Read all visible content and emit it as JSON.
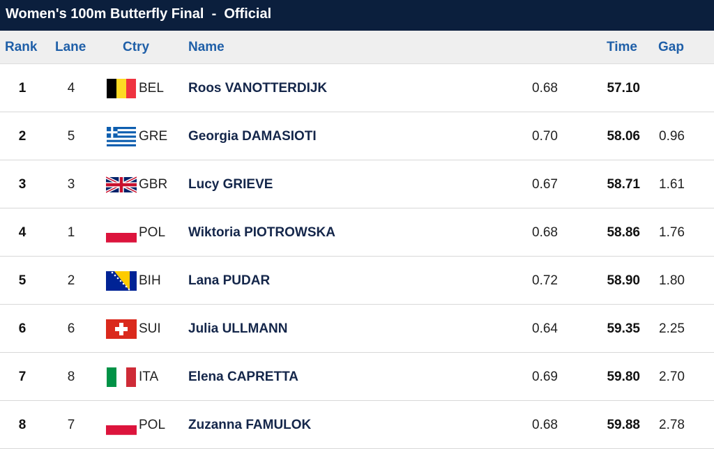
{
  "title": "Women's 100m Butterfly Final  -  Official",
  "columns": {
    "rank": "Rank",
    "lane": "Lane",
    "ctry": "Ctry",
    "name": "Name",
    "time": "Time",
    "gap": "Gap"
  },
  "rows": [
    {
      "rank": "1",
      "lane": "4",
      "flag": "bel-flag-icon",
      "ctry": "BEL",
      "name": "Roos VANOTTERDIJK",
      "reaction": "0.68",
      "time": "57.10",
      "gap": ""
    },
    {
      "rank": "2",
      "lane": "5",
      "flag": "gre-flag-icon",
      "ctry": "GRE",
      "name": "Georgia DAMASIOTI",
      "reaction": "0.70",
      "time": "58.06",
      "gap": "0.96"
    },
    {
      "rank": "3",
      "lane": "3",
      "flag": "gbr-flag-icon",
      "ctry": "GBR",
      "name": "Lucy GRIEVE",
      "reaction": "0.67",
      "time": "58.71",
      "gap": "1.61"
    },
    {
      "rank": "4",
      "lane": "1",
      "flag": "pol-flag-icon",
      "ctry": "POL",
      "name": "Wiktoria PIOTROWSKA",
      "reaction": "0.68",
      "time": "58.86",
      "gap": "1.76"
    },
    {
      "rank": "5",
      "lane": "2",
      "flag": "bih-flag-icon",
      "ctry": "BIH",
      "name": "Lana PUDAR",
      "reaction": "0.72",
      "time": "58.90",
      "gap": "1.80"
    },
    {
      "rank": "6",
      "lane": "6",
      "flag": "sui-flag-icon",
      "ctry": "SUI",
      "name": "Julia ULLMANN",
      "reaction": "0.64",
      "time": "59.35",
      "gap": "2.25"
    },
    {
      "rank": "7",
      "lane": "8",
      "flag": "ita-flag-icon",
      "ctry": "ITA",
      "name": "Elena CAPRETTA",
      "reaction": "0.69",
      "time": "59.80",
      "gap": "2.70"
    },
    {
      "rank": "8",
      "lane": "7",
      "flag": "pol-flag-icon",
      "ctry": "POL",
      "name": "Zuzanna FAMULOK",
      "reaction": "0.68",
      "time": "59.88",
      "gap": "2.78"
    }
  ],
  "colors": {
    "title_bg": "#0b1f3d",
    "header_text": "#1f5fa8",
    "name_text": "#14264a"
  }
}
